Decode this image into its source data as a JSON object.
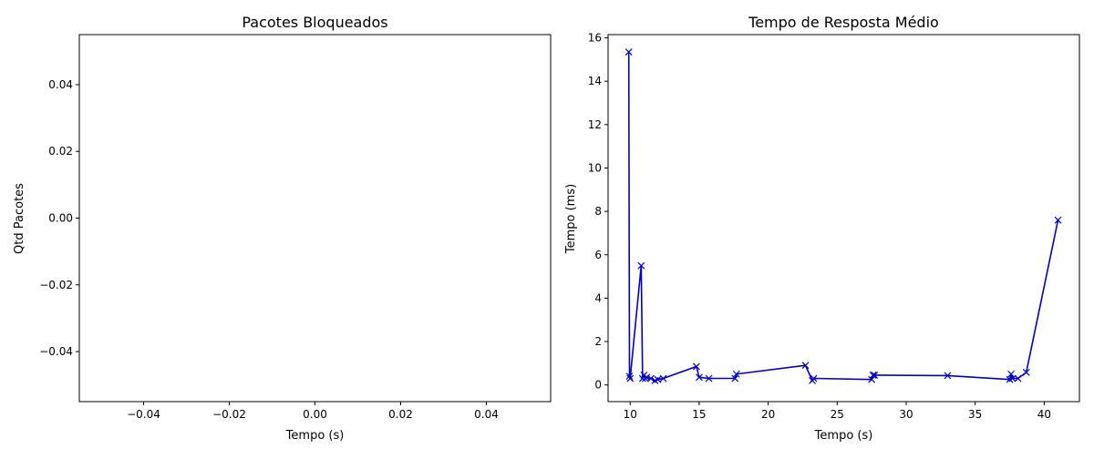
{
  "chart_data": [
    {
      "type": "line",
      "title": "Pacotes Bloqueados",
      "xlabel": "Tempo (s)",
      "ylabel": "Qtd Pacotes",
      "xlim": [
        -0.055,
        0.055
      ],
      "ylim": [
        -0.055,
        0.055
      ],
      "xticks": [
        -0.04,
        -0.02,
        0.0,
        0.02,
        0.04
      ],
      "xtick_labels": [
        "−0.04",
        "−0.02",
        "0.00",
        "0.02",
        "0.04"
      ],
      "yticks": [
        -0.04,
        -0.02,
        0.0,
        0.02,
        0.04
      ],
      "ytick_labels": [
        "−0.04",
        "−0.02",
        "0.00",
        "0.02",
        "0.04"
      ],
      "grid": false,
      "series": []
    },
    {
      "type": "line",
      "title": "Tempo de Resposta Médio",
      "xlabel": "Tempo (s)",
      "ylabel": "Tempo (ms)",
      "xlim": [
        8.4,
        42.55
      ],
      "ylim": [
        -0.77,
        16.15
      ],
      "xticks": [
        10,
        15,
        20,
        25,
        30,
        35,
        40
      ],
      "xtick_labels": [
        "10",
        "15",
        "20",
        "25",
        "30",
        "35",
        "40"
      ],
      "yticks": [
        0,
        2,
        4,
        6,
        8,
        10,
        12,
        14,
        16
      ],
      "ytick_labels": [
        "0",
        "2",
        "4",
        "6",
        "8",
        "10",
        "12",
        "14",
        "16"
      ],
      "grid": false,
      "colors": {
        "line": "#0000cc",
        "marker": "#0000cc"
      },
      "marker": "x",
      "series": [
        {
          "x": [
            9.9,
            9.95,
            10.0,
            10.8,
            10.9,
            11.0,
            11.1,
            11.2,
            11.5,
            11.8,
            12.0,
            12.4,
            14.8,
            15.0,
            15.7,
            17.6,
            17.7,
            22.7,
            23.2,
            23.3,
            27.5,
            27.6,
            27.7,
            33.0,
            37.5,
            37.6,
            37.7,
            38.1,
            38.7,
            41.0
          ],
          "y": [
            15.35,
            0.4,
            0.3,
            5.5,
            0.3,
            0.45,
            0.3,
            0.35,
            0.3,
            0.2,
            0.25,
            0.3,
            0.85,
            0.35,
            0.3,
            0.3,
            0.5,
            0.9,
            0.2,
            0.3,
            0.25,
            0.45,
            0.45,
            0.43,
            0.25,
            0.5,
            0.3,
            0.3,
            0.58,
            7.6
          ]
        }
      ]
    }
  ]
}
